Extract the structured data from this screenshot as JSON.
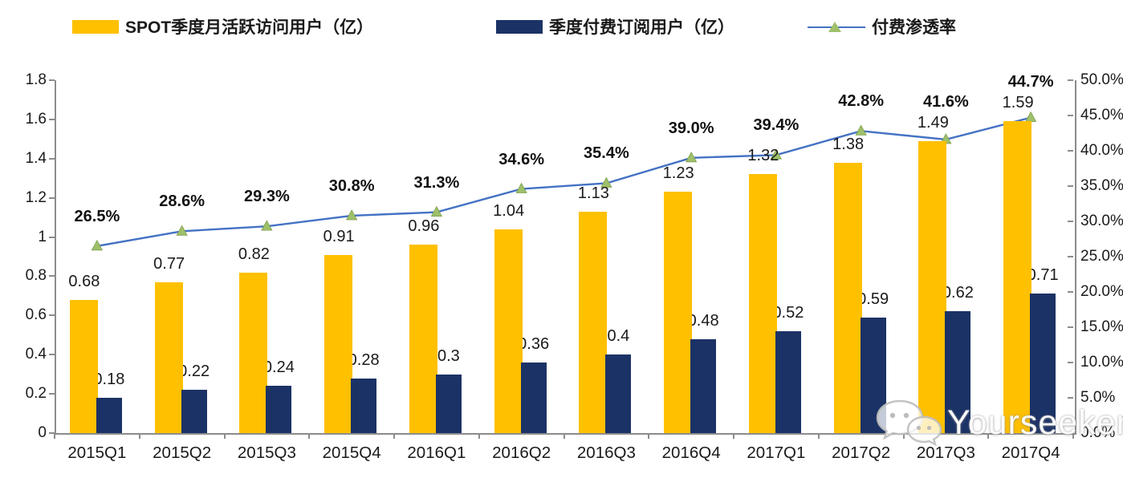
{
  "legend": [
    {
      "label": "SPOT季度月活跃访问用户（亿）",
      "swatch": "yellow-bar-swatch",
      "color": "#FFC000"
    },
    {
      "label": "季度付费订阅用户（亿）",
      "swatch": "navy-bar-swatch",
      "color": "#1F3864"
    },
    {
      "label": "付费渗透率",
      "swatch": "line-with-triangle-marker",
      "color": "#4472C4"
    }
  ],
  "chart_data": {
    "type": "bar",
    "subtype": "grouped-bar-with-line-combo",
    "categories": [
      "2015Q1",
      "2015Q2",
      "2015Q3",
      "2015Q4",
      "2016Q1",
      "2016Q2",
      "2016Q3",
      "2016Q4",
      "2017Q1",
      "2017Q2",
      "2017Q3",
      "2017Q4"
    ],
    "series": [
      {
        "name": "SPOT季度月活跃访问用户（亿）",
        "type": "bar",
        "axis": "left",
        "color": "#FFC000",
        "values": [
          0.68,
          0.77,
          0.82,
          0.91,
          0.96,
          1.04,
          1.13,
          1.23,
          1.32,
          1.38,
          1.49,
          1.59
        ],
        "labels": [
          "0.68",
          "0.77",
          "0.82",
          "0.91",
          "0.96",
          "1.04",
          "1.13",
          "1.23",
          "1.32",
          "1.38",
          "1.49",
          "1.59"
        ]
      },
      {
        "name": "季度付费订阅用户（亿）",
        "type": "bar",
        "axis": "left",
        "color": "#1B3266",
        "values": [
          0.18,
          0.22,
          0.24,
          0.28,
          0.3,
          0.36,
          0.4,
          0.48,
          0.52,
          0.59,
          0.62,
          0.71
        ],
        "labels": [
          "0.18",
          "0.22",
          "0.24",
          "0.28",
          "0.3",
          "0.36",
          "0.4",
          "0.48",
          "0.52",
          "0.59",
          "0.62",
          "0.71"
        ]
      },
      {
        "name": "付费渗透率",
        "type": "line",
        "axis": "right",
        "color": "#4472C4",
        "marker": "triangle-up",
        "marker_color": "#9ec06a",
        "values": [
          26.5,
          28.6,
          29.3,
          30.8,
          31.3,
          34.6,
          35.4,
          39.0,
          39.4,
          42.8,
          41.6,
          44.7
        ],
        "labels": [
          "26.5%",
          "28.6%",
          "29.3%",
          "30.8%",
          "31.3%",
          "34.6%",
          "35.4%",
          "39.0%",
          "39.4%",
          "42.8%",
          "41.6%",
          "44.7%"
        ]
      }
    ],
    "left_axis": {
      "min": 0,
      "max": 1.8,
      "step": 0.2,
      "ticks": [
        "1.8",
        "1.6",
        "1.4",
        "1.2",
        "1",
        "0.8",
        "0.6",
        "0.4",
        "0.2",
        "0"
      ]
    },
    "right_axis": {
      "min": 0,
      "max": 50,
      "step": 5,
      "format": "percent",
      "ticks": [
        "50.0%",
        "45.0%",
        "40.0%",
        "35.0%",
        "30.0%",
        "25.0%",
        "20.0%",
        "15.0%",
        "10.0%",
        "5.0%",
        "0.0%"
      ]
    },
    "grid": false,
    "legend_position": "top"
  },
  "watermark": {
    "text": "Yourseeker",
    "icon": "wechat-icon"
  }
}
